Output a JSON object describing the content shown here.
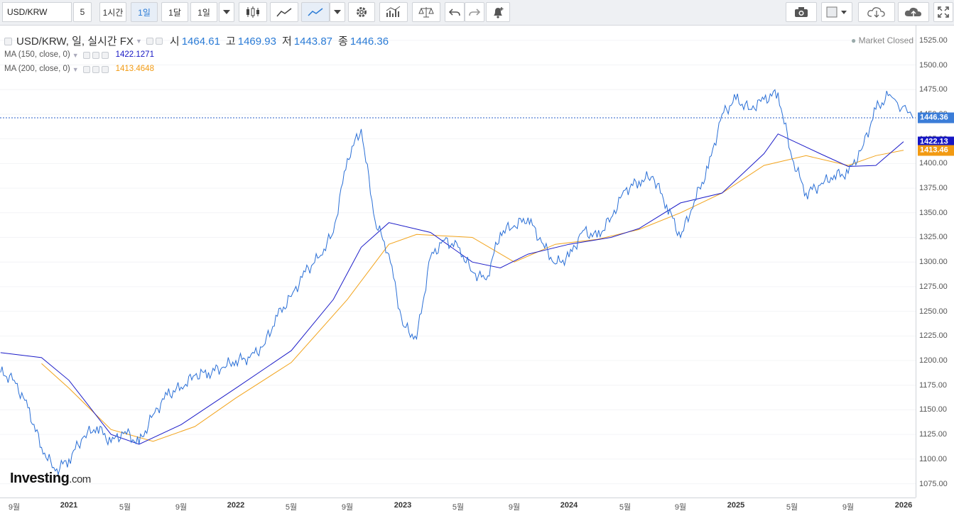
{
  "toolbar": {
    "symbol": "USD/KRW",
    "interval_buttons": [
      "5",
      "1시간",
      "1일",
      "1달",
      "1일"
    ],
    "active_interval": "1일"
  },
  "legend": {
    "title": "USD/KRW, 일, 실시간 FX",
    "open_label": "시",
    "open": "1464.61",
    "high_label": "고",
    "high": "1469.93",
    "low_label": "저",
    "low": "1443.87",
    "close_label": "종",
    "close": "1446.36",
    "ma150_label": "MA (150, close, 0)",
    "ma150_value": "1422.1271",
    "ma200_label": "MA (200, close, 0)",
    "ma200_value": "1413.4648"
  },
  "status": "Market Closed",
  "logo": {
    "main": "Investing",
    "suffix": ".com"
  },
  "colors": {
    "price": "#2a6fd6",
    "ma150": "#1c1cc8",
    "ma200": "#f2a31b",
    "last_tag": "#3b7dd8",
    "ma150_tag": "#1616c4",
    "ma200_tag": "#f29a12"
  },
  "chart_data": {
    "type": "line",
    "title": "USD/KRW, 일, 실시간 FX",
    "ylim": [
      1061,
      1540
    ],
    "y_ticks": [
      1075,
      1100,
      1125,
      1150,
      1175,
      1200,
      1225,
      1250,
      1275,
      1300,
      1325,
      1350,
      1375,
      1400,
      1425,
      1450,
      1475,
      1500,
      1525
    ],
    "x_ticks": [
      {
        "label": "9월",
        "year": false
      },
      {
        "label": "2021",
        "year": true
      },
      {
        "label": "5월",
        "year": false
      },
      {
        "label": "9월",
        "year": false
      },
      {
        "label": "2022",
        "year": true
      },
      {
        "label": "5월",
        "year": false
      },
      {
        "label": "9월",
        "year": false
      },
      {
        "label": "2023",
        "year": true
      },
      {
        "label": "5월",
        "year": false
      },
      {
        "label": "9월",
        "year": false
      },
      {
        "label": "2024",
        "year": true
      },
      {
        "label": "5월",
        "year": false
      },
      {
        "label": "9월",
        "year": false
      },
      {
        "label": "2025",
        "year": true
      },
      {
        "label": "5월",
        "year": false
      },
      {
        "label": "9월",
        "year": false
      },
      {
        "label": "2026",
        "year": true
      }
    ],
    "x_dates": [
      "2020-09",
      "2021-01",
      "2021-05",
      "2021-09",
      "2022-01",
      "2022-05",
      "2022-09",
      "2023-01",
      "2023-05",
      "2023-09",
      "2024-01",
      "2024-05",
      "2024-09",
      "2025-01",
      "2025-05",
      "2025-09",
      "2026-01"
    ],
    "last_price": 1446.36,
    "ma150_last": 1422.13,
    "ma200_last": 1413.46,
    "series": [
      {
        "name": "USD/KRW",
        "x": [
          "2020-08",
          "2020-09",
          "2020-10",
          "2020-11",
          "2020-12",
          "2021-01",
          "2021-02",
          "2021-03",
          "2021-04",
          "2021-05",
          "2021-06",
          "2021-07",
          "2021-08",
          "2021-09",
          "2021-10",
          "2021-11",
          "2021-12",
          "2022-01",
          "2022-02",
          "2022-03",
          "2022-04",
          "2022-05",
          "2022-06",
          "2022-07",
          "2022-08",
          "2022-09",
          "2022-10",
          "2022-11",
          "2022-12",
          "2023-01",
          "2023-02",
          "2023-03",
          "2023-04",
          "2023-05",
          "2023-06",
          "2023-07",
          "2023-08",
          "2023-09",
          "2023-10",
          "2023-11",
          "2023-12",
          "2024-01",
          "2024-02",
          "2024-03",
          "2024-04",
          "2024-05",
          "2024-06",
          "2024-07",
          "2024-08",
          "2024-09",
          "2024-10",
          "2024-11",
          "2024-12",
          "2025-01",
          "2025-02",
          "2025-03",
          "2025-04",
          "2025-05",
          "2025-06",
          "2025-07",
          "2025-08",
          "2025-09",
          "2025-10",
          "2025-11",
          "2025-12",
          "2026-01"
        ],
        "values": [
          1188,
          1180,
          1152,
          1112,
          1088,
          1100,
          1122,
          1133,
          1117,
          1128,
          1115,
          1145,
          1165,
          1173,
          1185,
          1188,
          1193,
          1200,
          1203,
          1215,
          1245,
          1265,
          1290,
          1305,
          1330,
          1405,
          1435,
          1342,
          1308,
          1236,
          1222,
          1305,
          1322,
          1315,
          1290,
          1282,
          1330,
          1337,
          1345,
          1320,
          1298,
          1305,
          1332,
          1325,
          1345,
          1373,
          1382,
          1387,
          1358,
          1325,
          1362,
          1395,
          1450,
          1465,
          1455,
          1465,
          1472,
          1405,
          1370,
          1378,
          1388,
          1390,
          1415,
          1455,
          1470,
          1446.36
        ]
      },
      {
        "name": "MA (150, close, 0)",
        "x": [
          "2020-08",
          "2020-11",
          "2021-01",
          "2021-04",
          "2021-06",
          "2021-09",
          "2022-01",
          "2022-05",
          "2022-08",
          "2022-10",
          "2022-12",
          "2023-03",
          "2023-06",
          "2023-08",
          "2023-10",
          "2024-01",
          "2024-04",
          "2024-06",
          "2024-09",
          "2024-12",
          "2025-03",
          "2025-04",
          "2025-07",
          "2025-09",
          "2025-11",
          "2026-01"
        ],
        "values": [
          1208,
          1203,
          1180,
          1125,
          1115,
          1135,
          1172,
          1210,
          1262,
          1315,
          1340,
          1330,
          1300,
          1294,
          1308,
          1318,
          1325,
          1334,
          1360,
          1370,
          1410,
          1430,
          1410,
          1397,
          1398,
          1422.13
        ]
      },
      {
        "name": "MA (200, close, 0)",
        "x": [
          "2020-11",
          "2021-01",
          "2021-04",
          "2021-07",
          "2021-10",
          "2022-01",
          "2022-05",
          "2022-09",
          "2022-12",
          "2023-02",
          "2023-06",
          "2023-09",
          "2023-12",
          "2024-03",
          "2024-06",
          "2024-09",
          "2024-12",
          "2025-03",
          "2025-06",
          "2025-09",
          "2025-11",
          "2026-01"
        ],
        "values": [
          1197,
          1172,
          1130,
          1118,
          1133,
          1162,
          1198,
          1262,
          1318,
          1328,
          1325,
          1300,
          1318,
          1323,
          1333,
          1350,
          1370,
          1398,
          1408,
          1398,
          1408,
          1413.46
        ]
      }
    ]
  }
}
